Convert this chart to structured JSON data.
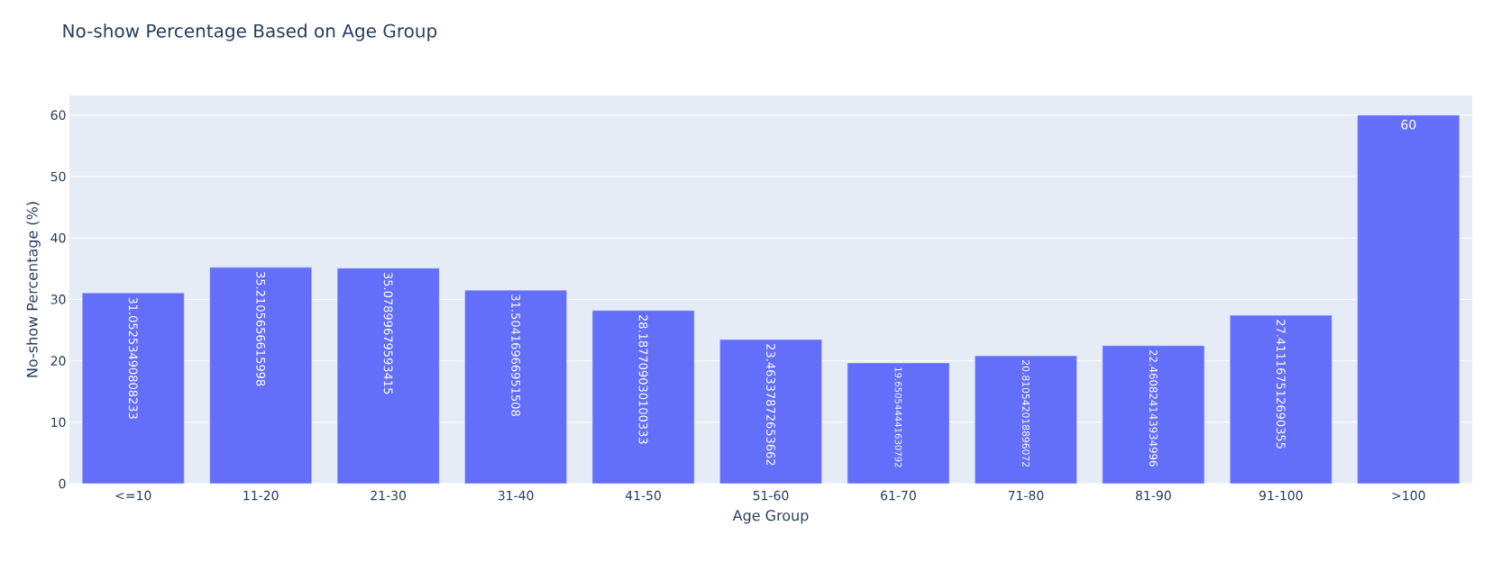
{
  "chart_data": {
    "type": "bar",
    "title": "No-show Percentage Based on Age Group",
    "xlabel": "Age Group",
    "ylabel": "No-show Percentage (%)",
    "categories": [
      "<=10",
      "11-20",
      "21-30",
      "31-40",
      "41-50",
      "51-60",
      "61-70",
      "71-80",
      "81-90",
      "91-100",
      ">100"
    ],
    "values": [
      31.05253490808233,
      35.2105656615998,
      35.07899679593415,
      31.50416966951508,
      28.187709030100333,
      23.46337872653662,
      19.65054444163079,
      20.810542018896072,
      22.46082414393496,
      27.41116751269035,
      60
    ],
    "value_labels": [
      "31.05253490808233",
      "35.2105656615998",
      "35.07899679593415",
      "31.50416966951508",
      "28.187709030100333",
      "23.46337872653662",
      "19.650544441630792",
      "20.810542018896072",
      "22.460824143934996",
      "27.411167512690355",
      "60"
    ],
    "color": "#636efa",
    "ylim": [
      0,
      63.2
    ],
    "yticks": [
      0,
      10,
      20,
      30,
      40,
      50,
      60
    ],
    "grid": "y"
  }
}
